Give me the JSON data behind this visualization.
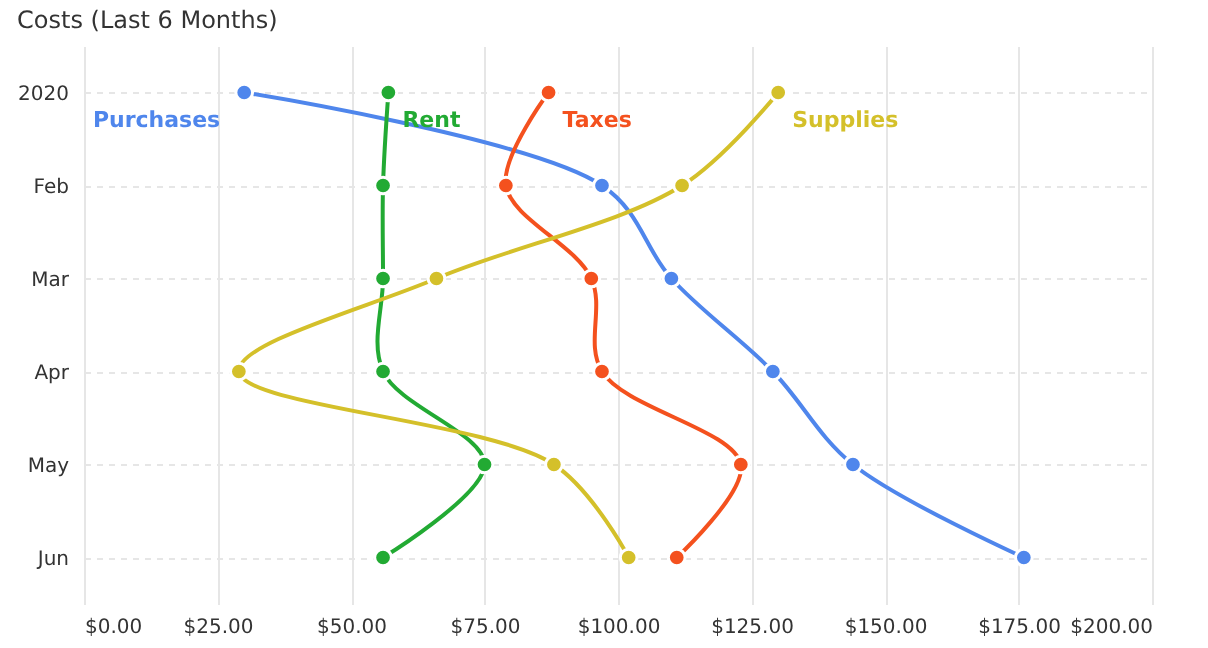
{
  "chart_data": {
    "type": "line",
    "title": "Costs (Last 6 Months)",
    "orientation": "horizontal",
    "categories": [
      "2020",
      "Feb",
      "Mar",
      "Apr",
      "May",
      "Jun"
    ],
    "series": [
      {
        "name": "Purchases",
        "color": "#4f86ec",
        "values": [
          30,
          97,
          110,
          129,
          144,
          176
        ]
      },
      {
        "name": "Rent",
        "color": "#22aa33",
        "values": [
          57,
          56,
          56,
          56,
          75,
          56
        ]
      },
      {
        "name": "Taxes",
        "color": "#f4511e",
        "values": [
          87,
          79,
          95,
          97,
          123,
          111
        ]
      },
      {
        "name": "Supplies",
        "color": "#d4c02a",
        "values": [
          130,
          112,
          66,
          29,
          88,
          102
        ]
      }
    ],
    "xlim": [
      0,
      200
    ],
    "xticks": [
      {
        "value": 0,
        "label": "$0.00"
      },
      {
        "value": 25,
        "label": "$25.00"
      },
      {
        "value": 50,
        "label": "$50.00"
      },
      {
        "value": 75,
        "label": "$75.00"
      },
      {
        "value": 100,
        "label": "$100.00"
      },
      {
        "value": 125,
        "label": "$125.00"
      },
      {
        "value": 150,
        "label": "$150.00"
      },
      {
        "value": 175,
        "label": "$175.00"
      },
      {
        "value": 200,
        "label": "$200.00"
      }
    ],
    "grid": true,
    "marker": "circle",
    "line_style": "solid"
  }
}
